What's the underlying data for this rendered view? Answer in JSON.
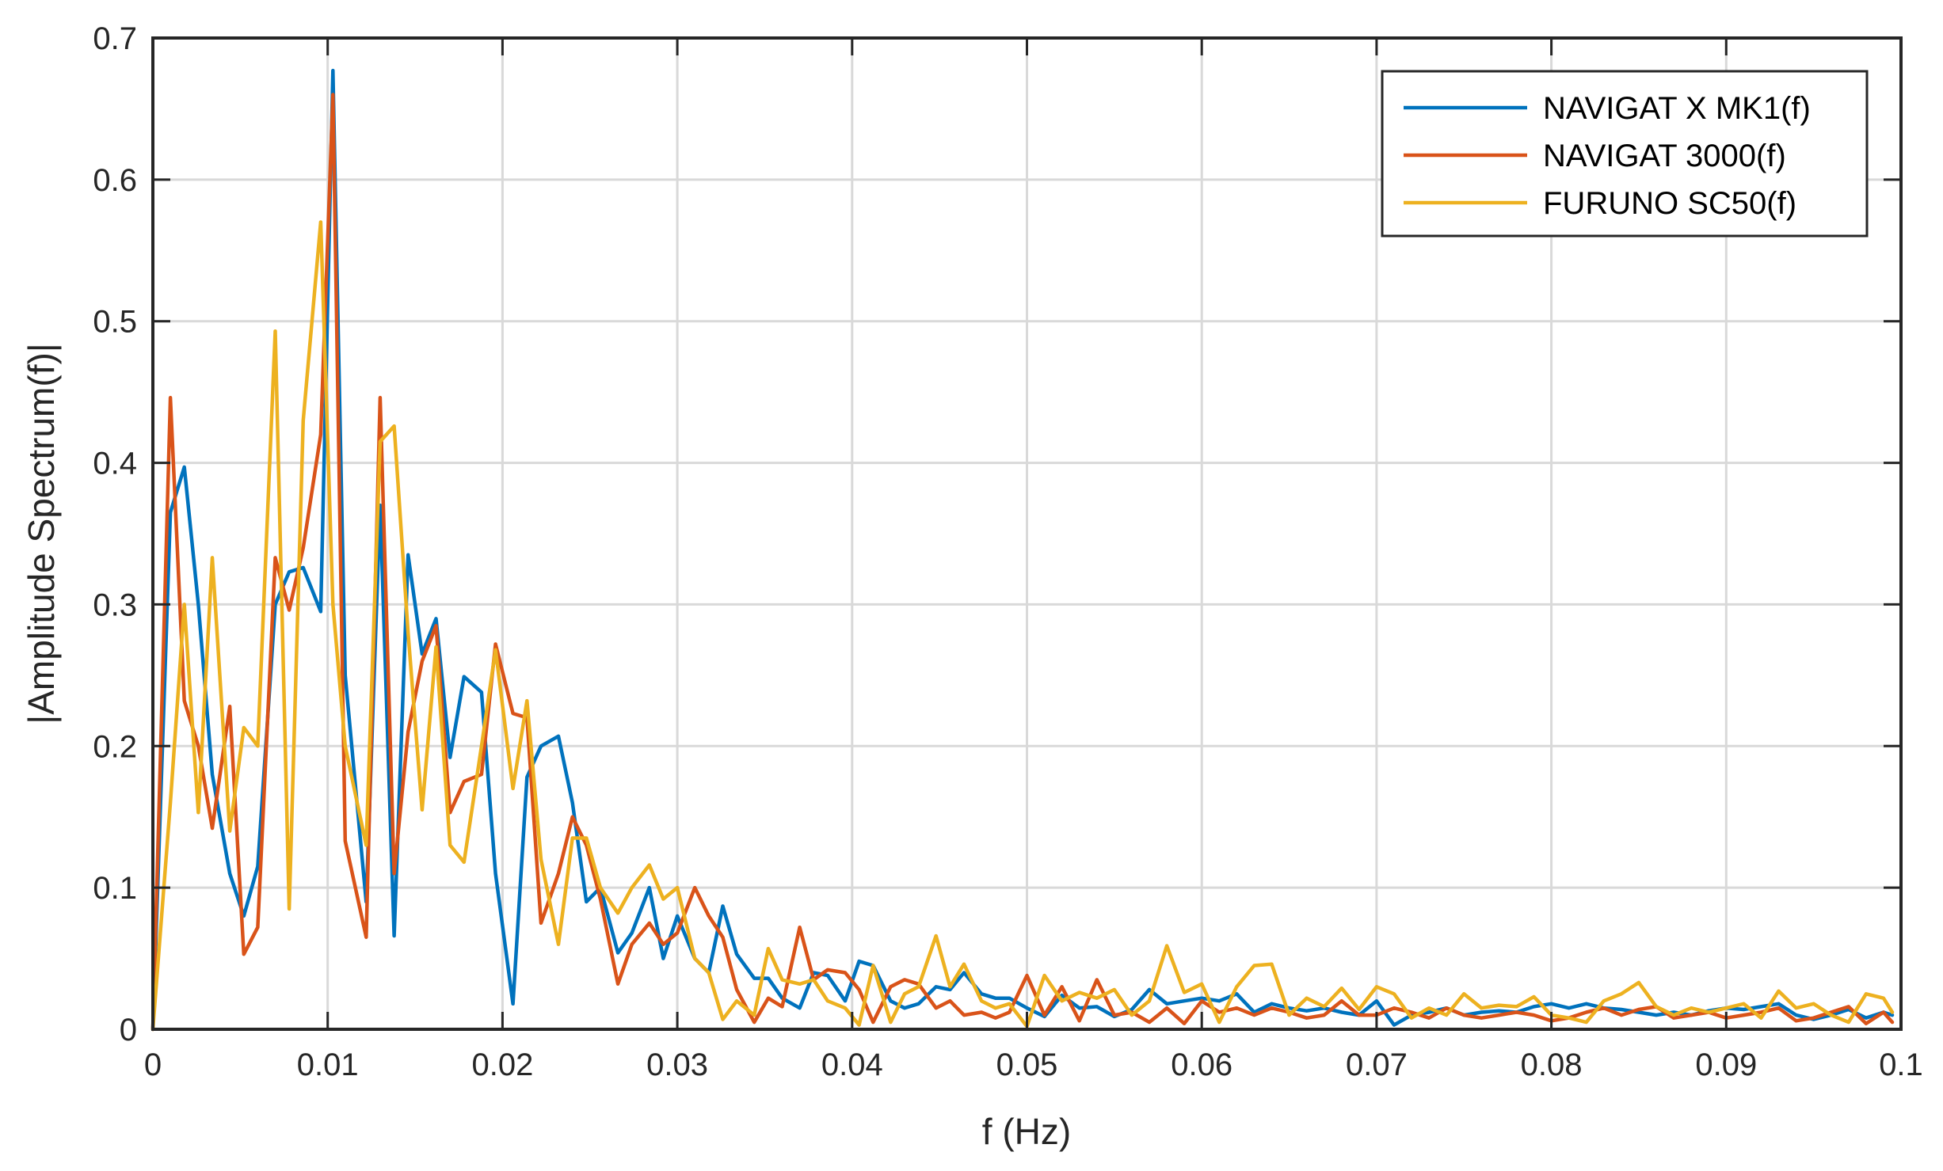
{
  "chart_data": {
    "type": "line",
    "title": "",
    "xlabel": "f (Hz)",
    "ylabel": "|Amplitude Spectrum(f)|",
    "xlim": [
      0,
      0.1
    ],
    "ylim": [
      0,
      0.7
    ],
    "xticks": [
      0,
      0.01,
      0.02,
      0.03,
      0.04,
      0.05,
      0.06,
      0.07,
      0.08,
      0.09,
      0.1
    ],
    "xtick_labels": [
      "0",
      "0.01",
      "0.02",
      "0.03",
      "0.04",
      "0.05",
      "0.06",
      "0.07",
      "0.08",
      "0.09",
      "0.1"
    ],
    "yticks": [
      0,
      0.1,
      0.2,
      0.3,
      0.4,
      0.5,
      0.6,
      0.7
    ],
    "ytick_labels": [
      "0",
      "0.1",
      "0.2",
      "0.3",
      "0.4",
      "0.5",
      "0.6",
      "0.7"
    ],
    "grid": true,
    "legend_position": "top-right",
    "series": [
      {
        "name": "NAVIGAT X MK1(f)",
        "color": "#0072BD",
        "x": [
          0,
          0.001,
          0.0018,
          0.0026,
          0.0034,
          0.0044,
          0.0052,
          0.006,
          0.007,
          0.0078,
          0.0086,
          0.0096,
          0.0103,
          0.011,
          0.0122,
          0.013,
          0.0138,
          0.0146,
          0.0154,
          0.0162,
          0.017,
          0.0178,
          0.0188,
          0.0196,
          0.0206,
          0.0214,
          0.0222,
          0.0232,
          0.024,
          0.0248,
          0.0256,
          0.0266,
          0.0274,
          0.0284,
          0.0292,
          0.03,
          0.031,
          0.0318,
          0.0326,
          0.0334,
          0.0344,
          0.0352,
          0.036,
          0.037,
          0.0378,
          0.0386,
          0.0396,
          0.0404,
          0.0412,
          0.0422,
          0.043,
          0.0438,
          0.0448,
          0.0456,
          0.0464,
          0.0474,
          0.0482,
          0.049,
          0.05,
          0.051,
          0.052,
          0.053,
          0.054,
          0.055,
          0.056,
          0.057,
          0.058,
          0.059,
          0.06,
          0.061,
          0.062,
          0.063,
          0.064,
          0.065,
          0.066,
          0.067,
          0.068,
          0.069,
          0.07,
          0.071,
          0.072,
          0.073,
          0.074,
          0.075,
          0.076,
          0.077,
          0.078,
          0.079,
          0.08,
          0.081,
          0.082,
          0.083,
          0.084,
          0.085,
          0.086,
          0.087,
          0.088,
          0.089,
          0.09,
          0.091,
          0.092,
          0.093,
          0.094,
          0.095,
          0.096,
          0.097,
          0.098,
          0.099,
          0.0995
        ],
        "y": [
          0,
          0.365,
          0.397,
          0.3,
          0.18,
          0.11,
          0.08,
          0.115,
          0.3,
          0.323,
          0.326,
          0.295,
          0.677,
          0.25,
          0.09,
          0.37,
          0.066,
          0.335,
          0.265,
          0.29,
          0.192,
          0.249,
          0.238,
          0.11,
          0.018,
          0.178,
          0.2,
          0.207,
          0.16,
          0.09,
          0.1,
          0.054,
          0.068,
          0.1,
          0.05,
          0.08,
          0.05,
          0.04,
          0.087,
          0.053,
          0.036,
          0.036,
          0.022,
          0.015,
          0.04,
          0.038,
          0.02,
          0.048,
          0.045,
          0.02,
          0.015,
          0.018,
          0.03,
          0.028,
          0.04,
          0.025,
          0.022,
          0.022,
          0.015,
          0.009,
          0.024,
          0.015,
          0.016,
          0.009,
          0.014,
          0.028,
          0.018,
          0.02,
          0.022,
          0.02,
          0.025,
          0.012,
          0.018,
          0.015,
          0.013,
          0.015,
          0.012,
          0.01,
          0.02,
          0.003,
          0.01,
          0.012,
          0.015,
          0.01,
          0.012,
          0.013,
          0.012,
          0.016,
          0.018,
          0.015,
          0.018,
          0.015,
          0.014,
          0.012,
          0.01,
          0.012,
          0.01,
          0.013,
          0.015,
          0.014,
          0.016,
          0.018,
          0.01,
          0.007,
          0.01,
          0.014,
          0.008,
          0.012,
          0.01
        ]
      },
      {
        "name": "NAVIGAT 3000(f)",
        "color": "#D95319",
        "x": [
          0,
          0.001,
          0.0018,
          0.0026,
          0.0034,
          0.0044,
          0.0052,
          0.006,
          0.007,
          0.0078,
          0.0086,
          0.0096,
          0.0103,
          0.011,
          0.0122,
          0.013,
          0.0138,
          0.0146,
          0.0154,
          0.0162,
          0.017,
          0.0178,
          0.0188,
          0.0196,
          0.0206,
          0.0214,
          0.0222,
          0.0232,
          0.024,
          0.0248,
          0.0256,
          0.0266,
          0.0274,
          0.0284,
          0.0292,
          0.03,
          0.031,
          0.0318,
          0.0326,
          0.0334,
          0.0344,
          0.0352,
          0.036,
          0.037,
          0.0378,
          0.0386,
          0.0396,
          0.0404,
          0.0412,
          0.0422,
          0.043,
          0.0438,
          0.0448,
          0.0456,
          0.0464,
          0.0474,
          0.0482,
          0.049,
          0.05,
          0.051,
          0.052,
          0.053,
          0.054,
          0.055,
          0.056,
          0.057,
          0.058,
          0.059,
          0.06,
          0.061,
          0.062,
          0.063,
          0.064,
          0.065,
          0.066,
          0.067,
          0.068,
          0.069,
          0.07,
          0.071,
          0.072,
          0.073,
          0.074,
          0.075,
          0.076,
          0.077,
          0.078,
          0.079,
          0.08,
          0.081,
          0.082,
          0.083,
          0.084,
          0.085,
          0.086,
          0.087,
          0.088,
          0.089,
          0.09,
          0.091,
          0.092,
          0.093,
          0.094,
          0.095,
          0.096,
          0.097,
          0.098,
          0.099,
          0.0995
        ],
        "y": [
          0,
          0.446,
          0.232,
          0.2,
          0.142,
          0.228,
          0.053,
          0.072,
          0.333,
          0.296,
          0.34,
          0.42,
          0.66,
          0.133,
          0.065,
          0.446,
          0.11,
          0.21,
          0.26,
          0.285,
          0.153,
          0.175,
          0.18,
          0.272,
          0.223,
          0.22,
          0.075,
          0.11,
          0.15,
          0.13,
          0.092,
          0.032,
          0.06,
          0.075,
          0.06,
          0.068,
          0.1,
          0.08,
          0.065,
          0.028,
          0.005,
          0.022,
          0.016,
          0.072,
          0.035,
          0.042,
          0.04,
          0.028,
          0.005,
          0.03,
          0.035,
          0.032,
          0.015,
          0.02,
          0.01,
          0.012,
          0.008,
          0.012,
          0.038,
          0.01,
          0.03,
          0.006,
          0.035,
          0.01,
          0.012,
          0.005,
          0.015,
          0.004,
          0.02,
          0.012,
          0.015,
          0.01,
          0.015,
          0.012,
          0.008,
          0.01,
          0.02,
          0.01,
          0.01,
          0.015,
          0.012,
          0.008,
          0.015,
          0.01,
          0.008,
          0.01,
          0.012,
          0.01,
          0.006,
          0.008,
          0.012,
          0.015,
          0.01,
          0.014,
          0.016,
          0.008,
          0.01,
          0.012,
          0.008,
          0.01,
          0.012,
          0.015,
          0.006,
          0.008,
          0.012,
          0.016,
          0.004,
          0.012,
          0.005
        ]
      },
      {
        "name": "FURUNO SC50(f)",
        "color": "#EDB120",
        "x": [
          0,
          0.001,
          0.0018,
          0.0026,
          0.0034,
          0.0044,
          0.0052,
          0.006,
          0.007,
          0.0078,
          0.0086,
          0.0096,
          0.0103,
          0.011,
          0.0122,
          0.013,
          0.0138,
          0.0146,
          0.0154,
          0.0162,
          0.017,
          0.0178,
          0.0188,
          0.0196,
          0.0206,
          0.0214,
          0.0222,
          0.0232,
          0.024,
          0.0248,
          0.0256,
          0.0266,
          0.0274,
          0.0284,
          0.0292,
          0.03,
          0.031,
          0.0318,
          0.0326,
          0.0334,
          0.0344,
          0.0352,
          0.036,
          0.037,
          0.0378,
          0.0386,
          0.0396,
          0.0404,
          0.0412,
          0.0422,
          0.043,
          0.0438,
          0.0448,
          0.0456,
          0.0464,
          0.0474,
          0.0482,
          0.049,
          0.05,
          0.051,
          0.052,
          0.053,
          0.054,
          0.055,
          0.056,
          0.057,
          0.058,
          0.059,
          0.06,
          0.061,
          0.062,
          0.063,
          0.064,
          0.065,
          0.066,
          0.067,
          0.068,
          0.069,
          0.07,
          0.071,
          0.072,
          0.073,
          0.074,
          0.075,
          0.076,
          0.077,
          0.078,
          0.079,
          0.08,
          0.081,
          0.082,
          0.083,
          0.084,
          0.085,
          0.086,
          0.087,
          0.088,
          0.089,
          0.09,
          0.091,
          0.092,
          0.093,
          0.094,
          0.095,
          0.096,
          0.097,
          0.098,
          0.099,
          0.0995
        ],
        "y": [
          0,
          0.16,
          0.3,
          0.153,
          0.333,
          0.14,
          0.213,
          0.2,
          0.493,
          0.085,
          0.43,
          0.57,
          0.3,
          0.2,
          0.13,
          0.415,
          0.426,
          0.28,
          0.155,
          0.27,
          0.13,
          0.118,
          0.2,
          0.268,
          0.17,
          0.232,
          0.12,
          0.06,
          0.135,
          0.135,
          0.1,
          0.082,
          0.1,
          0.116,
          0.092,
          0.1,
          0.05,
          0.04,
          0.007,
          0.02,
          0.01,
          0.057,
          0.035,
          0.032,
          0.035,
          0.02,
          0.015,
          0.003,
          0.045,
          0.005,
          0.025,
          0.03,
          0.066,
          0.03,
          0.046,
          0.02,
          0.015,
          0.018,
          0.002,
          0.038,
          0.02,
          0.026,
          0.022,
          0.028,
          0.01,
          0.02,
          0.059,
          0.026,
          0.032,
          0.005,
          0.03,
          0.045,
          0.046,
          0.01,
          0.022,
          0.016,
          0.029,
          0.014,
          0.03,
          0.025,
          0.008,
          0.015,
          0.01,
          0.025,
          0.015,
          0.017,
          0.016,
          0.023,
          0.01,
          0.008,
          0.005,
          0.02,
          0.025,
          0.033,
          0.016,
          0.01,
          0.015,
          0.012,
          0.015,
          0.018,
          0.008,
          0.027,
          0.015,
          0.018,
          0.01,
          0.005,
          0.025,
          0.022,
          0.012
        ]
      }
    ]
  }
}
